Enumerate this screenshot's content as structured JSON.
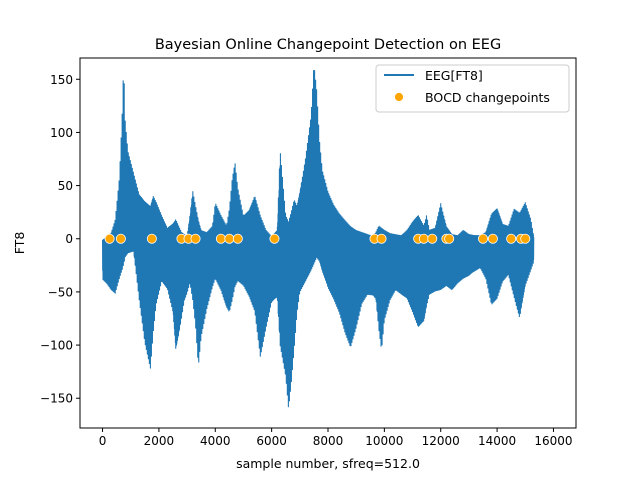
{
  "chart_data": {
    "type": "line",
    "title": "Bayesian Online Changepoint Detection on EEG",
    "xlabel": "sample number, sfreq=512.0",
    "ylabel": "FT8",
    "xlim": [
      -800,
      16800
    ],
    "ylim": [
      -178,
      170
    ],
    "xticks": [
      0,
      2000,
      4000,
      6000,
      8000,
      10000,
      12000,
      14000,
      16000
    ],
    "xtick_labels": [
      "0",
      "2000",
      "4000",
      "6000",
      "8000",
      "10000",
      "12000",
      "14000",
      "16000"
    ],
    "yticks": [
      -150,
      -100,
      -50,
      0,
      50,
      100,
      150
    ],
    "ytick_labels": [
      "−150",
      "−100",
      "−50",
      "0",
      "50",
      "100",
      "150"
    ],
    "legend_position": "top-right",
    "series": [
      {
        "name": "EEG[FT8]",
        "kind": "line",
        "color": "#1f77b4",
        "envelope": {
          "x": [
            0,
            150,
            300,
            450,
            600,
            700,
            750,
            800,
            900,
            1100,
            1300,
            1500,
            1700,
            1800,
            1900,
            2100,
            2300,
            2500,
            2600,
            2700,
            2800,
            2900,
            3000,
            3100,
            3200,
            3300,
            3400,
            3500,
            3700,
            3900,
            4000,
            4200,
            4400,
            4500,
            4600,
            4700,
            4800,
            5000,
            5200,
            5400,
            5600,
            5800,
            6000,
            6200,
            6300,
            6500,
            6600,
            6700,
            6800,
            6900,
            7000,
            7200,
            7400,
            7500,
            7600,
            7700,
            7800,
            8000,
            8200,
            8400,
            8600,
            8800,
            9000,
            9200,
            9400,
            9600,
            9700,
            9800,
            9900,
            10000,
            10200,
            10400,
            10600,
            10800,
            11000,
            11200,
            11400,
            11500,
            11600,
            11800,
            12000,
            12200,
            12400,
            12600,
            12800,
            13000,
            13200,
            13400,
            13600,
            13800,
            14000,
            14200,
            14400,
            14600,
            14800,
            15000,
            15200,
            15300
          ],
          "upper": [
            -2,
            2,
            5,
            18,
            58,
            120,
            165,
            112,
            82,
            62,
            42,
            36,
            32,
            42,
            36,
            22,
            10,
            14,
            18,
            12,
            6,
            4,
            2,
            22,
            46,
            32,
            18,
            8,
            6,
            12,
            34,
            22,
            12,
            28,
            56,
            72,
            48,
            22,
            28,
            42,
            22,
            8,
            2,
            8,
            84,
            22,
            16,
            26,
            38,
            32,
            46,
            78,
            118,
            166,
            140,
            92,
            64,
            44,
            32,
            24,
            18,
            12,
            8,
            6,
            4,
            2,
            6,
            12,
            10,
            8,
            5,
            4,
            3,
            8,
            16,
            22,
            12,
            22,
            8,
            10,
            34,
            12,
            4,
            3,
            8,
            4,
            3,
            3,
            6,
            24,
            30,
            14,
            12,
            28,
            24,
            34,
            18,
            2
          ],
          "lower": [
            -38,
            -42,
            -48,
            -52,
            -38,
            -30,
            -25,
            -18,
            -14,
            -12,
            -58,
            -98,
            -122,
            -88,
            -62,
            -40,
            -48,
            -72,
            -110,
            -95,
            -78,
            -60,
            -52,
            -42,
            -58,
            -82,
            -120,
            -92,
            -66,
            -46,
            -38,
            -50,
            -68,
            -72,
            -60,
            -46,
            -40,
            -44,
            -54,
            -68,
            -112,
            -86,
            -62,
            -58,
            -104,
            -132,
            -162,
            -136,
            -104,
            -70,
            -50,
            -40,
            -30,
            -24,
            -18,
            -22,
            -32,
            -48,
            -58,
            -70,
            -88,
            -102,
            -84,
            -62,
            -54,
            -56,
            -60,
            -88,
            -108,
            -78,
            -58,
            -48,
            -52,
            -56,
            -70,
            -86,
            -82,
            -66,
            -54,
            -50,
            -48,
            -44,
            -48,
            -42,
            -38,
            -36,
            -32,
            -28,
            -38,
            -62,
            -56,
            -40,
            -34,
            -56,
            -78,
            -46,
            -30,
            -22
          ]
        }
      },
      {
        "name": "BOCD changepoints",
        "kind": "scatter",
        "color": "#ffa500",
        "x": [
          250,
          650,
          1750,
          2800,
          3050,
          3300,
          4200,
          4500,
          4800,
          6100,
          9650,
          9900,
          11200,
          11400,
          11700,
          12200,
          12300,
          13500,
          13850,
          14500,
          14850,
          15000
        ],
        "y": [
          0,
          0,
          0,
          0,
          0,
          0,
          0,
          0,
          0,
          0,
          0,
          0,
          0,
          0,
          0,
          0,
          0,
          0,
          0,
          0,
          0,
          0
        ]
      }
    ]
  }
}
